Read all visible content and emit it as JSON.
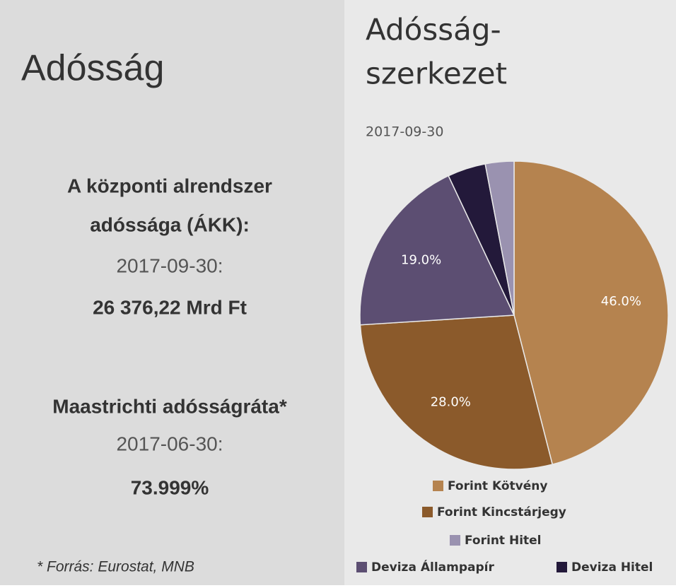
{
  "left_panel": {
    "heading": "Adósság",
    "debt_label_lines": [
      "A központi alrendszer",
      "adóssága (ÁKK):"
    ],
    "debt_date": "2017-09-30:",
    "debt_value": "26 376,22 Mrd Ft",
    "ratio_label": "Maastrichti adósságráta*",
    "ratio_date": "2017-06-30:",
    "ratio_value": "73.999%",
    "source": "* Forrás: Eurostat, MNB"
  },
  "chart_data": {
    "type": "pie",
    "title_lines": [
      "Adósság-",
      "szerkezet"
    ],
    "subtitle": "2017-09-30",
    "categories": [
      "Forint Kötvény",
      "Forint Kincstárjegy",
      "Deviza Állampapír",
      "Deviza Hitel",
      "Forint Hitel"
    ],
    "values": [
      46,
      28,
      19,
      4,
      3
    ],
    "value_labels": [
      "46.0%",
      "28.0%",
      "19.0%",
      null,
      null
    ],
    "colors": [
      "#b5834f",
      "#8b5a2b",
      "#5c4e72",
      "#23193a",
      "#9a92b0"
    ]
  }
}
